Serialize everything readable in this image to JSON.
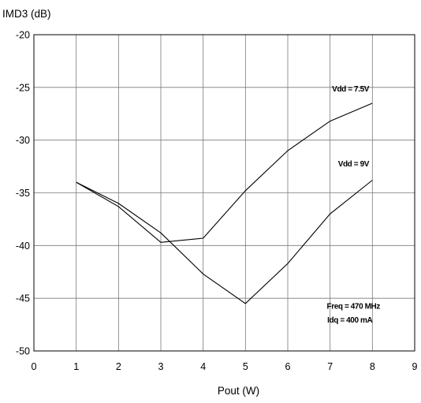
{
  "chart_data": {
    "type": "line",
    "title": "",
    "xlabel": "Pout (W)",
    "ylabel": "IMD3 (dB)",
    "xlim": [
      0,
      9
    ],
    "ylim": [
      -50,
      -20
    ],
    "xticks": [
      0,
      1,
      2,
      3,
      4,
      5,
      6,
      7,
      8,
      9
    ],
    "yticks": [
      -20,
      -25,
      -30,
      -35,
      -40,
      -45,
      -50
    ],
    "grid": true,
    "series": [
      {
        "name": "Vdd = 7.5V",
        "x": [
          1,
          2,
          3,
          4,
          5,
          6,
          7,
          8
        ],
        "y": [
          -34.0,
          -36.3,
          -39.7,
          -39.3,
          -34.8,
          -31.0,
          -28.2,
          -26.5
        ]
      },
      {
        "name": "Vdd = 9V",
        "x": [
          1,
          2,
          3,
          4,
          5,
          6,
          7,
          8
        ],
        "y": [
          -34.0,
          -36.0,
          -38.8,
          -42.7,
          -45.5,
          -41.7,
          -37.0,
          -33.8
        ]
      }
    ],
    "annotations": [
      "Freq = 470 MHz",
      "Idq = 400 mA"
    ]
  }
}
